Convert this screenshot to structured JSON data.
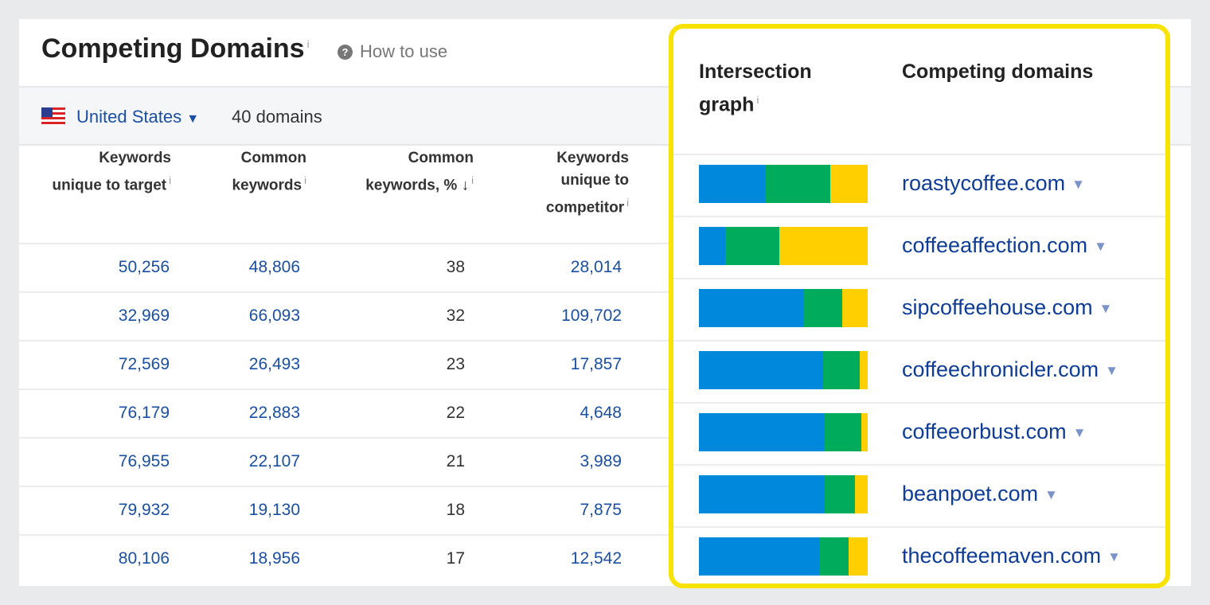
{
  "header": {
    "title": "Competing Domains",
    "info": "i",
    "how_to_use": "How to use",
    "help_icon": "question-circle-icon"
  },
  "filter": {
    "country": "United States",
    "caret": "▼",
    "domains_count": "40 domains"
  },
  "columns": [
    {
      "label1": "Keywords",
      "label2": "unique to target",
      "label3": "",
      "info": "i"
    },
    {
      "label1": "Common",
      "label2": "keywords",
      "label3": "",
      "info": "i"
    },
    {
      "label1": "Common",
      "label2": "keywords, % ↓",
      "label3": "",
      "info": "i"
    },
    {
      "label1": "Keywords",
      "label2": "unique to",
      "label3": "competitor",
      "info": "i"
    }
  ],
  "rows": [
    {
      "unique_target": "50,256",
      "common": "48,806",
      "pct": "38",
      "unique_comp": "28,014",
      "domain": "roastycoffee.com"
    },
    {
      "unique_target": "32,969",
      "common": "66,093",
      "pct": "32",
      "unique_comp": "109,702",
      "domain": "coffeeaffection.com"
    },
    {
      "unique_target": "72,569",
      "common": "26,493",
      "pct": "23",
      "unique_comp": "17,857",
      "domain": "sipcoffeehouse.com"
    },
    {
      "unique_target": "76,179",
      "common": "22,883",
      "pct": "22",
      "unique_comp": "4,648",
      "domain": "coffeechronicler.com"
    },
    {
      "unique_target": "76,955",
      "common": "22,107",
      "pct": "21",
      "unique_comp": "3,989",
      "domain": "coffeeorbust.com"
    },
    {
      "unique_target": "79,932",
      "common": "19,130",
      "pct": "18",
      "unique_comp": "7,875",
      "domain": "beanpoet.com"
    },
    {
      "unique_target": "80,106",
      "common": "18,956",
      "pct": "17",
      "unique_comp": "12,542",
      "domain": "thecoffeemaven.com"
    }
  ],
  "panel": {
    "graph_header1": "Intersection",
    "graph_header2": "graph",
    "info": "i",
    "domains_header": "Competing domains",
    "caret": "▼"
  },
  "colors": {
    "unique_target": "#0088dd",
    "common": "#00ab5c",
    "unique_competitor": "#ffcf00",
    "highlight": "#f7e200",
    "link": "#1a4fa3"
  }
}
